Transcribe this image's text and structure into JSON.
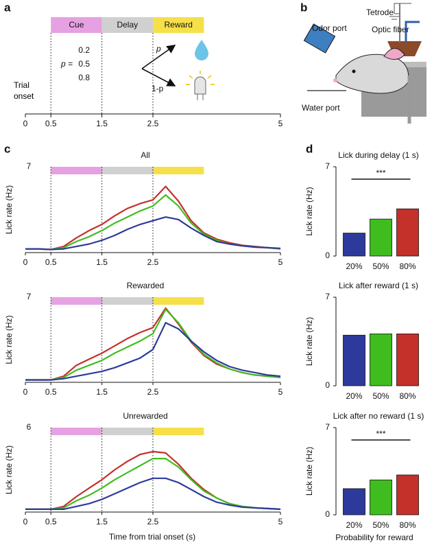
{
  "panel_labels": [
    "a",
    "b",
    "c",
    "d"
  ],
  "task": {
    "xlim": [
      0,
      5
    ],
    "xticks": [
      0,
      0.5,
      1.5,
      2.5,
      5
    ],
    "epochs": [
      {
        "name": "Cue",
        "start": 0.5,
        "end": 1.5,
        "color": "#e6a1e2"
      },
      {
        "name": "Delay",
        "start": 1.5,
        "end": 2.5,
        "color": "#d0d0d0"
      },
      {
        "name": "Reward",
        "start": 2.5,
        "end": 3.5,
        "color": "#f6e04a"
      }
    ],
    "prob_label": "p =",
    "probabilities": [
      0.2,
      0.5,
      0.8
    ],
    "branches": [
      "p",
      "1-p"
    ],
    "onset_label": "Trial onset"
  },
  "illustration": {
    "tetrode": "Tetrode",
    "optic_fiber": "Optic fiber",
    "odor_port": "Odor port",
    "water_port": "Water port"
  },
  "chart_data": [
    {
      "type": "line",
      "title": "All",
      "ylabel": "Lick rate (Hz)",
      "x": [
        0,
        0.25,
        0.5,
        0.75,
        1,
        1.25,
        1.5,
        1.75,
        2,
        2.25,
        2.5,
        2.75,
        3,
        3.25,
        3.5,
        3.75,
        4,
        4.25,
        4.5,
        4.75,
        5
      ],
      "xlim": [
        0,
        5
      ],
      "xticks": [
        0,
        0.5,
        1.5,
        2.5,
        5
      ],
      "ylim": [
        0,
        7
      ],
      "yticks": [
        7
      ],
      "series": [
        {
          "color": "#c4302a",
          "values": [
            0.3,
            0.3,
            0.25,
            0.5,
            1.2,
            1.8,
            2.3,
            3.0,
            3.6,
            4.0,
            4.3,
            5.4,
            4.2,
            2.6,
            1.6,
            1.1,
            0.8,
            0.6,
            0.5,
            0.4,
            0.3
          ]
        },
        {
          "color": "#3fbd1f",
          "values": [
            0.3,
            0.3,
            0.25,
            0.4,
            0.9,
            1.3,
            1.8,
            2.4,
            2.9,
            3.4,
            3.8,
            4.7,
            3.8,
            2.4,
            1.5,
            1.0,
            0.7,
            0.55,
            0.45,
            0.4,
            0.3
          ]
        },
        {
          "color": "#2d3a9c",
          "values": [
            0.3,
            0.3,
            0.25,
            0.3,
            0.5,
            0.7,
            1.0,
            1.4,
            1.9,
            2.3,
            2.6,
            2.9,
            2.7,
            2.0,
            1.4,
            0.9,
            0.7,
            0.55,
            0.45,
            0.4,
            0.35
          ]
        }
      ]
    },
    {
      "type": "line",
      "title": "Rewarded",
      "ylabel": "Lick rate (Hz)",
      "x": [
        0,
        0.25,
        0.5,
        0.75,
        1,
        1.25,
        1.5,
        1.75,
        2,
        2.25,
        2.5,
        2.75,
        3,
        3.25,
        3.5,
        3.75,
        4,
        4.25,
        4.5,
        4.75,
        5
      ],
      "xlim": [
        0,
        5
      ],
      "xticks": [
        0,
        0.5,
        1.5,
        2.5,
        5
      ],
      "ylim": [
        0,
        7
      ],
      "yticks": [
        7
      ],
      "series": [
        {
          "color": "#c4302a",
          "values": [
            0.2,
            0.2,
            0.2,
            0.5,
            1.4,
            1.9,
            2.4,
            3.0,
            3.6,
            4.1,
            4.5,
            6.1,
            4.8,
            3.3,
            2.2,
            1.5,
            1.1,
            0.8,
            0.6,
            0.5,
            0.4
          ]
        },
        {
          "color": "#3fbd1f",
          "values": [
            0.2,
            0.2,
            0.2,
            0.4,
            1.0,
            1.4,
            1.8,
            2.4,
            2.9,
            3.4,
            4.0,
            6.0,
            4.9,
            3.4,
            2.3,
            1.6,
            1.1,
            0.8,
            0.6,
            0.5,
            0.4
          ]
        },
        {
          "color": "#2d3a9c",
          "values": [
            0.2,
            0.2,
            0.2,
            0.3,
            0.5,
            0.7,
            0.9,
            1.2,
            1.6,
            2.0,
            2.7,
            4.9,
            4.4,
            3.4,
            2.5,
            1.8,
            1.3,
            1.0,
            0.8,
            0.6,
            0.5
          ]
        }
      ]
    },
    {
      "type": "line",
      "title": "Unrewarded",
      "ylabel": "Lick rate (Hz)",
      "xlabel": "Time from trial onset (s)",
      "x": [
        0,
        0.25,
        0.5,
        0.75,
        1,
        1.25,
        1.5,
        1.75,
        2,
        2.25,
        2.5,
        2.75,
        3,
        3.25,
        3.5,
        3.75,
        4,
        4.25,
        4.5,
        4.75,
        5
      ],
      "xlim": [
        0,
        5
      ],
      "xticks": [
        0,
        0.5,
        1.5,
        2.5,
        5
      ],
      "ylim": [
        0,
        6
      ],
      "yticks": [
        6
      ],
      "series": [
        {
          "color": "#c4302a",
          "values": [
            0.2,
            0.2,
            0.2,
            0.4,
            1.1,
            1.7,
            2.3,
            3.0,
            3.6,
            4.1,
            4.3,
            4.2,
            3.4,
            2.4,
            1.6,
            1.0,
            0.6,
            0.4,
            0.3,
            0.25,
            0.2
          ]
        },
        {
          "color": "#3fbd1f",
          "values": [
            0.2,
            0.2,
            0.2,
            0.3,
            0.8,
            1.2,
            1.7,
            2.3,
            2.8,
            3.3,
            3.8,
            3.8,
            3.2,
            2.3,
            1.5,
            1.0,
            0.6,
            0.4,
            0.3,
            0.25,
            0.2
          ]
        },
        {
          "color": "#2d3a9c",
          "values": [
            0.2,
            0.2,
            0.2,
            0.2,
            0.4,
            0.6,
            0.9,
            1.3,
            1.7,
            2.1,
            2.4,
            2.4,
            2.1,
            1.6,
            1.1,
            0.7,
            0.5,
            0.35,
            0.3,
            0.25,
            0.2
          ]
        }
      ]
    },
    {
      "type": "bar",
      "title": "Lick during delay (1 s)",
      "ylabel": "Lick rate (Hz)",
      "categories": [
        "20%",
        "50%",
        "80%"
      ],
      "values": [
        1.8,
        2.9,
        3.7
      ],
      "colors": [
        "#2d3a9c",
        "#3fbd1f",
        "#c4302a"
      ],
      "ylim": [
        0,
        7
      ],
      "yticks": [
        0,
        7
      ],
      "significance": {
        "text": "***",
        "from": 0,
        "to": 2
      }
    },
    {
      "type": "bar",
      "title": "Lick after reward (1 s)",
      "ylabel": "Lick rate (Hz)",
      "categories": [
        "20%",
        "50%",
        "80%"
      ],
      "values": [
        4.0,
        4.1,
        4.1
      ],
      "colors": [
        "#2d3a9c",
        "#3fbd1f",
        "#c4302a"
      ],
      "ylim": [
        0,
        7
      ],
      "yticks": [
        0,
        7
      ]
    },
    {
      "type": "bar",
      "title": "Lick after no reward (1 s)",
      "ylabel": "Lick rate (Hz)",
      "xlabel": "Probability for reward",
      "categories": [
        "20%",
        "50%",
        "80%"
      ],
      "values": [
        2.1,
        2.8,
        3.2
      ],
      "colors": [
        "#2d3a9c",
        "#3fbd1f",
        "#c4302a"
      ],
      "ylim": [
        0,
        7
      ],
      "yticks": [
        0,
        7
      ],
      "significance": {
        "text": "***",
        "from": 0,
        "to": 2
      }
    }
  ]
}
